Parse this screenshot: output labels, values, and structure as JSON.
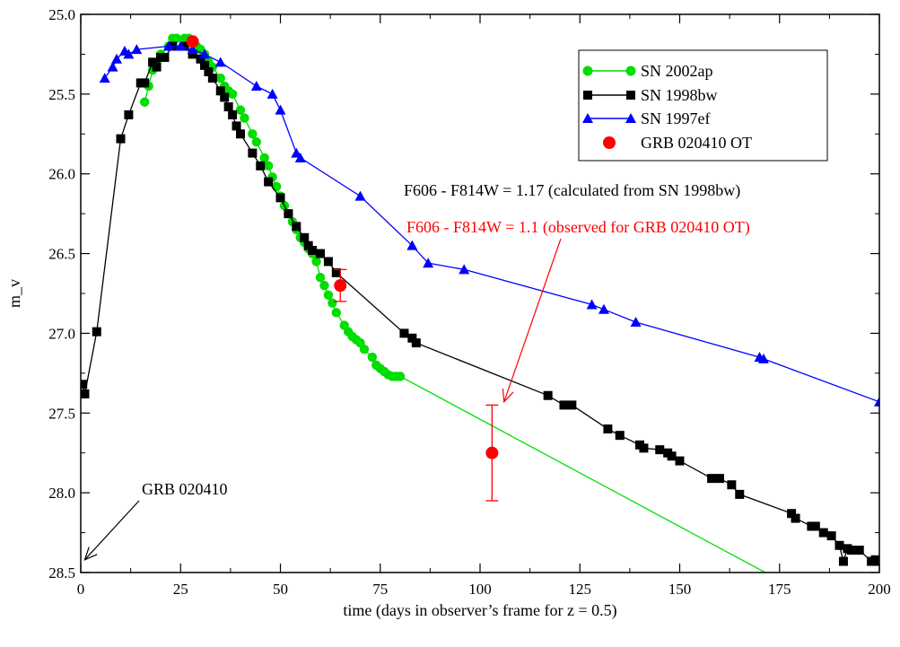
{
  "chart_data": {
    "type": "line",
    "title": "",
    "xlabel": "time (days in observer’s frame for z = 0.5)",
    "ylabel": "m_v",
    "xlim": [
      0,
      200
    ],
    "ylim": [
      28.5,
      25.0
    ],
    "y_inverted": true,
    "grid": false,
    "legend_position": "top-right",
    "x_ticks": [
      0,
      25,
      50,
      75,
      100,
      125,
      150,
      175,
      200
    ],
    "x_tick_labels": [
      "0",
      "25",
      "50",
      "75",
      "100",
      "125",
      "150",
      "175",
      "200"
    ],
    "y_ticks": [
      25.0,
      25.5,
      26.0,
      26.5,
      27.0,
      27.5,
      28.0,
      28.5
    ],
    "y_tick_labels": [
      "25.0",
      "25.5",
      "26.0",
      "26.5",
      "27.0",
      "27.5",
      "28.0",
      "28.5"
    ],
    "series": [
      {
        "name": "SN 2002ap",
        "color": "#00dd00",
        "marker": "circle",
        "points": [
          [
            16,
            25.55
          ],
          [
            17,
            25.45
          ],
          [
            18,
            25.35
          ],
          [
            19,
            25.3
          ],
          [
            20,
            25.25
          ],
          [
            22,
            25.2
          ],
          [
            23,
            25.15
          ],
          [
            24,
            25.15
          ],
          [
            26,
            25.15
          ],
          [
            27,
            25.15
          ],
          [
            29,
            25.2
          ],
          [
            30,
            25.22
          ],
          [
            31,
            25.25
          ],
          [
            32,
            25.3
          ],
          [
            33,
            25.33
          ],
          [
            35,
            25.4
          ],
          [
            36,
            25.45
          ],
          [
            37,
            25.48
          ],
          [
            38,
            25.5
          ],
          [
            40,
            25.6
          ],
          [
            41,
            25.65
          ],
          [
            43,
            25.75
          ],
          [
            44,
            25.8
          ],
          [
            46,
            25.9
          ],
          [
            47,
            25.95
          ],
          [
            48,
            26.02
          ],
          [
            49,
            26.08
          ],
          [
            50,
            26.14
          ],
          [
            51,
            26.2
          ],
          [
            52,
            26.25
          ],
          [
            53,
            26.3
          ],
          [
            54,
            26.35
          ],
          [
            55,
            26.4
          ],
          [
            56,
            26.43
          ],
          [
            57,
            26.47
          ],
          [
            58,
            26.5
          ],
          [
            59,
            26.55
          ],
          [
            60,
            26.65
          ],
          [
            61,
            26.7
          ],
          [
            62,
            26.76
          ],
          [
            63,
            26.81
          ],
          [
            64,
            26.87
          ],
          [
            66,
            26.95
          ],
          [
            67,
            26.99
          ],
          [
            68,
            27.02
          ],
          [
            69,
            27.04
          ],
          [
            70,
            27.06
          ],
          [
            71,
            27.1
          ],
          [
            73,
            27.15
          ],
          [
            74,
            27.2
          ],
          [
            75,
            27.22
          ],
          [
            76,
            27.24
          ],
          [
            77,
            27.26
          ],
          [
            78,
            27.27
          ],
          [
            79,
            27.27
          ],
          [
            80,
            27.27
          ],
          [
            190,
            28.75
          ]
        ]
      },
      {
        "name": "SN 1998bw",
        "color": "#000000",
        "marker": "square",
        "points": [
          [
            0.5,
            27.32
          ],
          [
            1,
            27.38
          ],
          [
            4,
            26.99
          ],
          [
            10,
            25.78
          ],
          [
            12,
            25.63
          ],
          [
            15,
            25.43
          ],
          [
            16,
            25.43
          ],
          [
            18,
            25.3
          ],
          [
            19,
            25.33
          ],
          [
            20,
            25.27
          ],
          [
            21,
            25.27
          ],
          [
            23,
            25.2
          ],
          [
            26,
            25.2
          ],
          [
            28,
            25.25
          ],
          [
            30,
            25.28
          ],
          [
            31,
            25.32
          ],
          [
            32,
            25.36
          ],
          [
            33,
            25.4
          ],
          [
            35,
            25.48
          ],
          [
            36,
            25.52
          ],
          [
            37,
            25.58
          ],
          [
            38,
            25.63
          ],
          [
            39,
            25.7
          ],
          [
            40,
            25.75
          ],
          [
            43,
            25.87
          ],
          [
            45,
            25.95
          ],
          [
            47,
            26.05
          ],
          [
            50,
            26.15
          ],
          [
            52,
            26.25
          ],
          [
            54,
            26.33
          ],
          [
            56,
            26.4
          ],
          [
            57,
            26.45
          ],
          [
            58,
            26.48
          ],
          [
            60,
            26.5
          ],
          [
            62,
            26.55
          ],
          [
            64,
            26.62
          ],
          [
            81,
            27.0
          ],
          [
            83,
            27.03
          ],
          [
            84,
            27.06
          ],
          [
            117,
            27.39
          ],
          [
            121,
            27.45
          ],
          [
            123,
            27.45
          ],
          [
            132,
            27.6
          ],
          [
            135,
            27.64
          ],
          [
            140,
            27.7
          ],
          [
            141,
            27.72
          ],
          [
            145,
            27.73
          ],
          [
            147,
            27.75
          ],
          [
            148,
            27.77
          ],
          [
            150,
            27.8
          ],
          [
            158,
            27.91
          ],
          [
            160,
            27.91
          ],
          [
            163,
            27.95
          ],
          [
            165,
            28.01
          ],
          [
            178,
            28.13
          ],
          [
            179,
            28.16
          ],
          [
            183,
            28.21
          ],
          [
            184,
            28.21
          ],
          [
            186,
            28.25
          ],
          [
            188,
            28.27
          ],
          [
            190,
            28.33
          ],
          [
            191,
            28.43
          ],
          [
            192,
            28.35
          ],
          [
            193,
            28.36
          ],
          [
            195,
            28.36
          ],
          [
            198,
            28.43
          ],
          [
            199,
            28.42
          ],
          [
            200,
            28.43
          ]
        ]
      },
      {
        "name": "SN 1997ef",
        "color": "#0000ff",
        "marker": "triangle",
        "points": [
          [
            6,
            25.4
          ],
          [
            8,
            25.33
          ],
          [
            9,
            25.28
          ],
          [
            11,
            25.23
          ],
          [
            12,
            25.25
          ],
          [
            14,
            25.22
          ],
          [
            22,
            25.2
          ],
          [
            25,
            25.2
          ],
          [
            28,
            25.22
          ],
          [
            31,
            25.25
          ],
          [
            35,
            25.3
          ],
          [
            44,
            25.45
          ],
          [
            48,
            25.5
          ],
          [
            50,
            25.6
          ],
          [
            54,
            25.87
          ],
          [
            55,
            25.9
          ],
          [
            70,
            26.14
          ],
          [
            83,
            26.45
          ],
          [
            87,
            26.56
          ],
          [
            96,
            26.6
          ],
          [
            128,
            26.82
          ],
          [
            131,
            26.85
          ],
          [
            139,
            26.93
          ],
          [
            170,
            27.15
          ],
          [
            171,
            27.16
          ],
          [
            200,
            27.43
          ]
        ]
      },
      {
        "name": "GRB 020410 OT",
        "color": "#ff0000",
        "marker": "circle-large",
        "points": [
          [
            28,
            25.17
          ],
          [
            65,
            26.7
          ],
          [
            103,
            27.75
          ]
        ],
        "error_bars": [
          null,
          [
            26.6,
            26.8
          ],
          [
            27.45,
            28.05
          ]
        ]
      }
    ],
    "annotations": [
      {
        "text": "F606 - F814W = 1.17 (calculated from SN 1998bw)",
        "color": "#000000"
      },
      {
        "text": "F606 - F814W = 1.1 (observed for GRB 020410 OT)",
        "color": "#ff0000",
        "arrow_to": [
          106,
          27.43
        ]
      },
      {
        "text": "GRB 020410",
        "color": "#000000",
        "arrow_to": [
          1,
          28.42
        ]
      }
    ]
  }
}
